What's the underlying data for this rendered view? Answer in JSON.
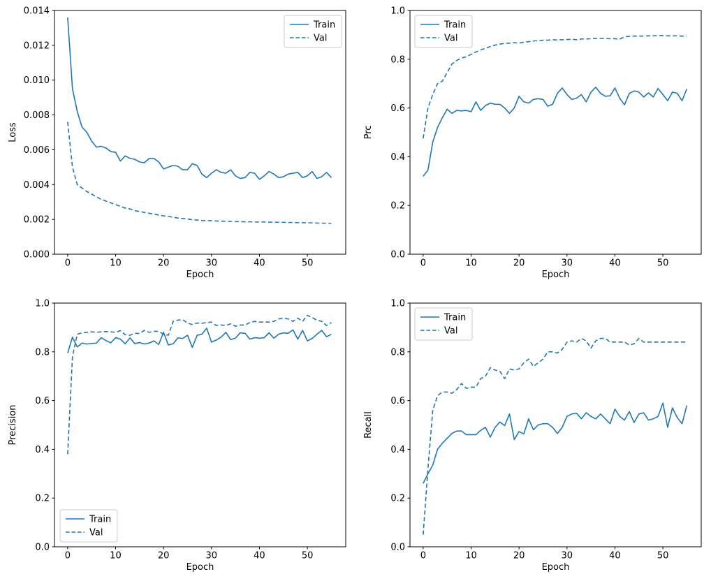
{
  "figure": {
    "background": "#ffffff",
    "line_color": "#1f77b4",
    "axis_color": "#000000",
    "legend_border_color": "#cccccc",
    "legend_background": "#ffffff"
  },
  "chart_data": [
    {
      "id": "loss",
      "type": "line",
      "title": "",
      "xlabel": "Epoch",
      "ylabel": "Loss",
      "xlim": [
        -2.75,
        58
      ],
      "ylim": [
        0,
        0.014
      ],
      "x_range": [
        0,
        55
      ],
      "xticks": [
        0,
        10,
        20,
        30,
        40,
        50
      ],
      "xtick_labels": [
        "0",
        "10",
        "20",
        "30",
        "40",
        "50"
      ],
      "yticks": [
        0,
        0.002,
        0.004,
        0.006,
        0.008,
        0.01,
        0.012,
        0.014
      ],
      "ytick_labels": [
        "0.000",
        "0.002",
        "0.004",
        "0.006",
        "0.008",
        "0.010",
        "0.012",
        "0.014"
      ],
      "grid": false,
      "legend_position": "upper-right",
      "series": [
        {
          "name": "Train",
          "style": "solid",
          "values": [
            0.0136,
            0.0095,
            0.0082,
            0.0073,
            0.007,
            0.0065,
            0.00615,
            0.0062,
            0.0061,
            0.0059,
            0.00585,
            0.00535,
            0.00565,
            0.0055,
            0.00545,
            0.0053,
            0.00525,
            0.0055,
            0.0055,
            0.0053,
            0.0049,
            0.005,
            0.0051,
            0.00505,
            0.00485,
            0.00485,
            0.0052,
            0.0051,
            0.0046,
            0.0044,
            0.00465,
            0.00485,
            0.0047,
            0.00465,
            0.00485,
            0.0045,
            0.00435,
            0.0044,
            0.0047,
            0.00465,
            0.0043,
            0.0045,
            0.00475,
            0.0046,
            0.0044,
            0.00445,
            0.0046,
            0.00465,
            0.0047,
            0.0044,
            0.0045,
            0.00475,
            0.00435,
            0.00445,
            0.0047,
            0.0044
          ]
        },
        {
          "name": "Val",
          "style": "dashed",
          "values": [
            0.0076,
            0.005,
            0.004,
            0.0038,
            0.0036,
            0.00345,
            0.0033,
            0.00315,
            0.00305,
            0.00295,
            0.00285,
            0.00275,
            0.00265,
            0.0026,
            0.0025,
            0.00245,
            0.0024,
            0.00235,
            0.0023,
            0.00225,
            0.0022,
            0.00217,
            0.00212,
            0.00208,
            0.00205,
            0.00202,
            0.00198,
            0.00196,
            0.00194,
            0.00193,
            0.00192,
            0.00191,
            0.0019,
            0.00189,
            0.00188,
            0.00187,
            0.00187,
            0.00186,
            0.00186,
            0.00185,
            0.00185,
            0.00185,
            0.00184,
            0.00184,
            0.00183,
            0.00183,
            0.00182,
            0.00182,
            0.00181,
            0.00181,
            0.0018,
            0.0018,
            0.00179,
            0.00178,
            0.00178,
            0.00177
          ]
        }
      ]
    },
    {
      "id": "prc",
      "type": "line",
      "title": "",
      "xlabel": "Epoch",
      "ylabel": "Prc",
      "xlim": [
        -2.75,
        58
      ],
      "ylim": [
        0,
        1
      ],
      "x_range": [
        0,
        55
      ],
      "xticks": [
        0,
        10,
        20,
        30,
        40,
        50
      ],
      "xtick_labels": [
        "0",
        "10",
        "20",
        "30",
        "40",
        "50"
      ],
      "yticks": [
        0,
        0.2,
        0.4,
        0.6,
        0.8,
        1.0
      ],
      "ytick_labels": [
        "0.0",
        "0.2",
        "0.4",
        "0.6",
        "0.8",
        "1.0"
      ],
      "grid": false,
      "legend_position": "upper-left",
      "series": [
        {
          "name": "Train",
          "style": "solid",
          "values": [
            0.32,
            0.345,
            0.46,
            0.52,
            0.56,
            0.595,
            0.578,
            0.59,
            0.588,
            0.59,
            0.585,
            0.625,
            0.59,
            0.61,
            0.62,
            0.615,
            0.615,
            0.6,
            0.578,
            0.6,
            0.648,
            0.625,
            0.62,
            0.635,
            0.638,
            0.635,
            0.607,
            0.615,
            0.66,
            0.682,
            0.655,
            0.635,
            0.64,
            0.655,
            0.625,
            0.665,
            0.685,
            0.66,
            0.648,
            0.65,
            0.682,
            0.64,
            0.613,
            0.66,
            0.67,
            0.665,
            0.645,
            0.662,
            0.645,
            0.68,
            0.655,
            0.63,
            0.665,
            0.66,
            0.63,
            0.678
          ]
        },
        {
          "name": "Val",
          "style": "dashed",
          "values": [
            0.475,
            0.6,
            0.655,
            0.7,
            0.71,
            0.745,
            0.78,
            0.795,
            0.805,
            0.81,
            0.82,
            0.83,
            0.838,
            0.845,
            0.852,
            0.858,
            0.862,
            0.865,
            0.866,
            0.868,
            0.866,
            0.87,
            0.872,
            0.875,
            0.876,
            0.878,
            0.878,
            0.88,
            0.879,
            0.88,
            0.881,
            0.882,
            0.88,
            0.883,
            0.883,
            0.884,
            0.885,
            0.885,
            0.885,
            0.884,
            0.884,
            0.882,
            0.892,
            0.894,
            0.895,
            0.895,
            0.895,
            0.896,
            0.896,
            0.897,
            0.897,
            0.896,
            0.896,
            0.896,
            0.895,
            0.895
          ]
        }
      ]
    },
    {
      "id": "precision",
      "type": "line",
      "title": "",
      "xlabel": "Epoch",
      "ylabel": "Precision",
      "xlim": [
        -2.75,
        58
      ],
      "ylim": [
        0,
        1
      ],
      "x_range": [
        0,
        55
      ],
      "xticks": [
        0,
        10,
        20,
        30,
        40,
        50
      ],
      "xtick_labels": [
        "0",
        "10",
        "20",
        "30",
        "40",
        "50"
      ],
      "yticks": [
        0,
        0.2,
        0.4,
        0.6,
        0.8,
        1.0
      ],
      "ytick_labels": [
        "0.0",
        "0.2",
        "0.4",
        "0.6",
        "0.8",
        "1.0"
      ],
      "grid": false,
      "legend_position": "lower-left",
      "series": [
        {
          "name": "Train",
          "style": "solid",
          "values": [
            0.795,
            0.86,
            0.82,
            0.836,
            0.832,
            0.834,
            0.836,
            0.858,
            0.846,
            0.837,
            0.858,
            0.852,
            0.833,
            0.857,
            0.834,
            0.838,
            0.832,
            0.836,
            0.845,
            0.83,
            0.88,
            0.828,
            0.833,
            0.857,
            0.855,
            0.868,
            0.818,
            0.868,
            0.872,
            0.897,
            0.84,
            0.848,
            0.86,
            0.88,
            0.85,
            0.856,
            0.878,
            0.876,
            0.852,
            0.858,
            0.856,
            0.858,
            0.878,
            0.856,
            0.872,
            0.878,
            0.876,
            0.89,
            0.852,
            0.888,
            0.845,
            0.855,
            0.872,
            0.888,
            0.862,
            0.872
          ]
        },
        {
          "name": "Val",
          "style": "dashed",
          "values": [
            0.38,
            0.78,
            0.872,
            0.878,
            0.88,
            0.882,
            0.88,
            0.882,
            0.883,
            0.882,
            0.88,
            0.887,
            0.87,
            0.868,
            0.876,
            0.875,
            0.888,
            0.88,
            0.884,
            0.884,
            0.872,
            0.868,
            0.925,
            0.93,
            0.932,
            0.918,
            0.912,
            0.918,
            0.917,
            0.92,
            0.922,
            0.908,
            0.91,
            0.908,
            0.915,
            0.905,
            0.91,
            0.91,
            0.92,
            0.925,
            0.922,
            0.922,
            0.922,
            0.925,
            0.935,
            0.938,
            0.935,
            0.925,
            0.938,
            0.925,
            0.95,
            0.94,
            0.93,
            0.925,
            0.908,
            0.92
          ]
        }
      ]
    },
    {
      "id": "recall",
      "type": "line",
      "title": "",
      "xlabel": "Epoch",
      "ylabel": "Recall",
      "xlim": [
        -2.75,
        58
      ],
      "ylim": [
        0,
        1
      ],
      "x_range": [
        0,
        55
      ],
      "xticks": [
        0,
        10,
        20,
        30,
        40,
        50
      ],
      "xtick_labels": [
        "0",
        "10",
        "20",
        "30",
        "40",
        "50"
      ],
      "yticks": [
        0,
        0.2,
        0.4,
        0.6,
        0.8,
        1.0
      ],
      "ytick_labels": [
        "0.0",
        "0.2",
        "0.4",
        "0.6",
        "0.8",
        "1.0"
      ],
      "grid": false,
      "legend_position": "upper-left",
      "series": [
        {
          "name": "Train",
          "style": "solid",
          "values": [
            0.26,
            0.3,
            0.335,
            0.4,
            0.425,
            0.445,
            0.465,
            0.475,
            0.475,
            0.46,
            0.46,
            0.46,
            0.478,
            0.49,
            0.45,
            0.49,
            0.512,
            0.497,
            0.545,
            0.44,
            0.473,
            0.463,
            0.525,
            0.48,
            0.5,
            0.505,
            0.505,
            0.49,
            0.465,
            0.49,
            0.535,
            0.545,
            0.548,
            0.525,
            0.55,
            0.535,
            0.525,
            0.545,
            0.525,
            0.505,
            0.565,
            0.535,
            0.52,
            0.555,
            0.51,
            0.545,
            0.55,
            0.52,
            0.525,
            0.535,
            0.59,
            0.49,
            0.57,
            0.53,
            0.505,
            0.58
          ]
        },
        {
          "name": "Val",
          "style": "dashed",
          "values": [
            0.05,
            0.32,
            0.56,
            0.62,
            0.635,
            0.635,
            0.63,
            0.645,
            0.67,
            0.65,
            0.655,
            0.655,
            0.69,
            0.7,
            0.735,
            0.725,
            0.72,
            0.69,
            0.73,
            0.725,
            0.73,
            0.755,
            0.77,
            0.74,
            0.755,
            0.77,
            0.8,
            0.8,
            0.795,
            0.81,
            0.84,
            0.845,
            0.84,
            0.855,
            0.845,
            0.815,
            0.845,
            0.855,
            0.855,
            0.84,
            0.84,
            0.84,
            0.84,
            0.828,
            0.833,
            0.855,
            0.84,
            0.84,
            0.84,
            0.84,
            0.84,
            0.84,
            0.84,
            0.84,
            0.84,
            0.84
          ]
        }
      ]
    }
  ]
}
